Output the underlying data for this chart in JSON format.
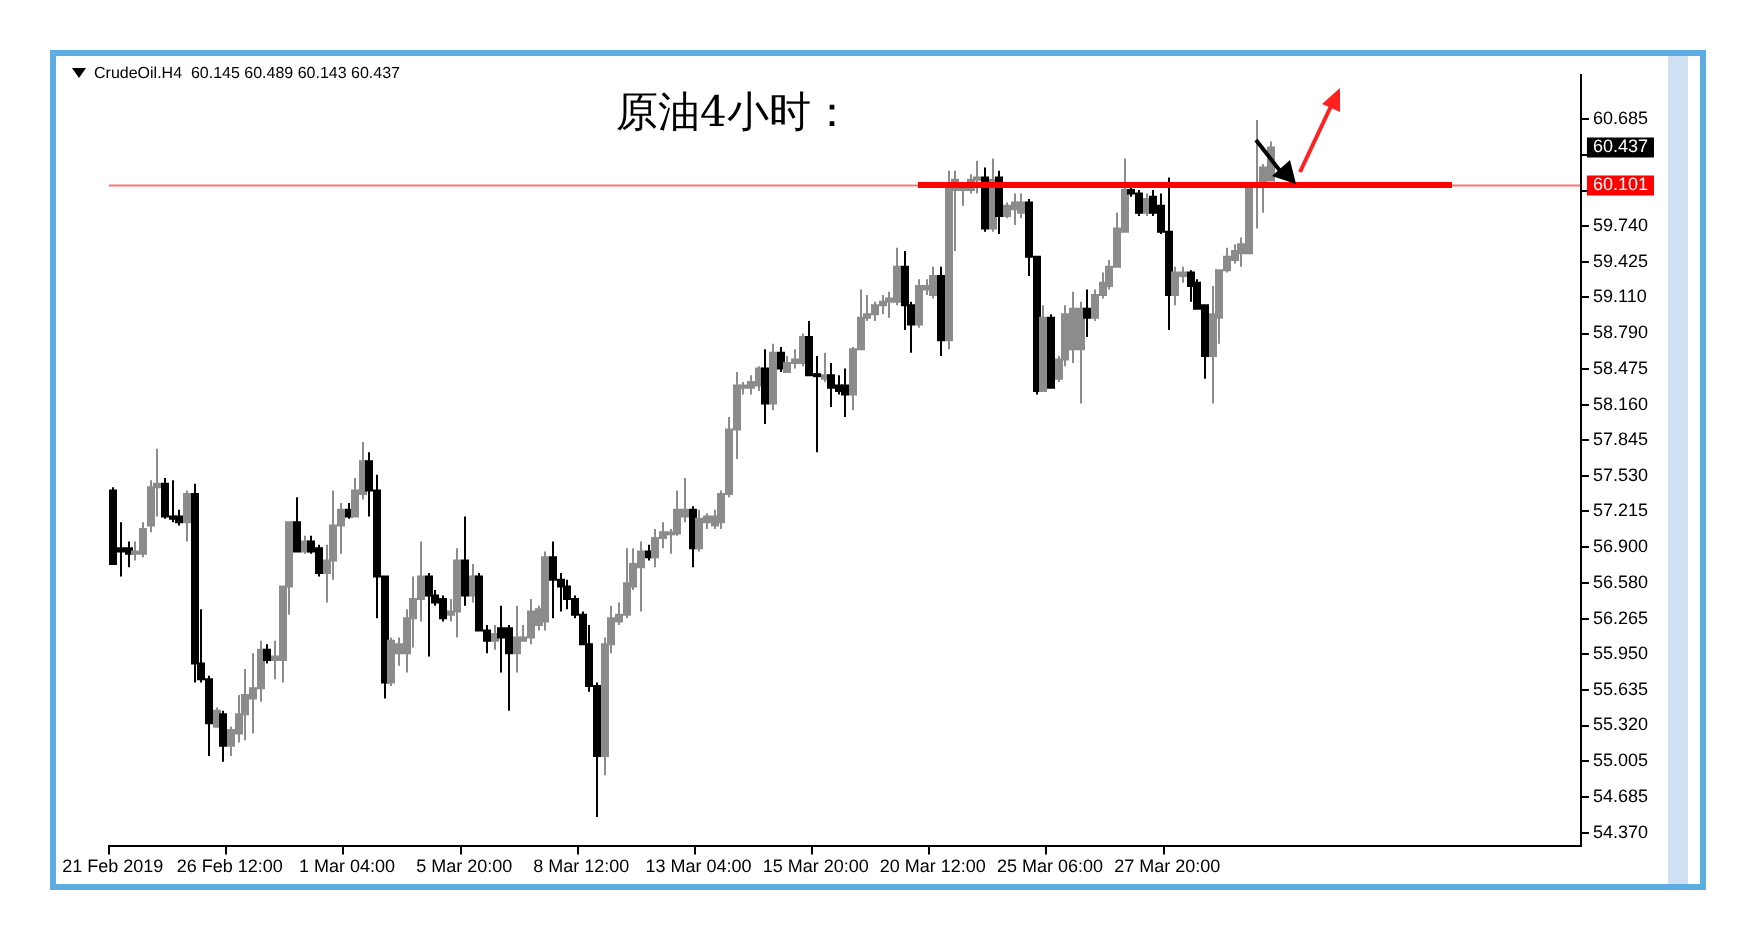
{
  "chart_data": {
    "type": "candlestick",
    "title": "原油4小时：",
    "colors": [
      "#000000",
      "#000000",
      "#000000",
      "#8c8c8c",
      "#8c8c8c",
      "#8c8c8c",
      "#8c8c8c",
      "#000000",
      "#000000",
      "#000000",
      "#8c8c8c",
      "#000000",
      "#000000",
      "#000000",
      "#8c8c8c",
      "#000000",
      "#8c8c8c",
      "#8c8c8c",
      "#8c8c8c",
      "#8c8c8c",
      "#8c8c8c",
      "#000000",
      "#8c8c8c",
      "#8c8c8c",
      "#8c8c8c",
      "#000000",
      "#8c8c8c",
      "#000000",
      "#000000",
      "#8c8c8c",
      "#8c8c8c",
      "#8c8c8c",
      "#000000",
      "#8c8c8c",
      "#8c8c8c",
      "#000000",
      "#000000",
      "#000000",
      "#8c8c8c",
      "#8c8c8c",
      "#8c8c8c",
      "#8c8c8c",
      "#8c8c8c",
      "#000000",
      "#000000",
      "#000000",
      "#8c8c8c",
      "#8c8c8c",
      "#000000",
      "#8c8c8c",
      "#000000",
      "#000000",
      "#8c8c8c",
      "#000000",
      "#000000",
      "#8c8c8c",
      "#8c8c8c",
      "#8c8c8c",
      "#8c8c8c",
      "#8c8c8c",
      "#000000",
      "#000000",
      "#000000",
      "#000000",
      "#000000",
      "#000000",
      "#000000",
      "#8c8c8c",
      "#8c8c8c",
      "#8c8c8c",
      "#8c8c8c",
      "#8c8c8c",
      "#8c8c8c",
      "#000000",
      "#8c8c8c",
      "#8c8c8c",
      "#8c8c8c",
      "#8c8c8c",
      "#8c8c8c",
      "#000000",
      "#8c8c8c",
      "#8c8c8c",
      "#8c8c8c",
      "#8c8c8c",
      "#8c8c8c",
      "#8c8c8c",
      "#8c8c8c",
      "#8c8c8c",
      "#8c8c8c",
      "#000000",
      "#8c8c8c",
      "#000000",
      "#8c8c8c",
      "#8c8c8c",
      "#8c8c8c",
      "#000000",
      "#000000",
      "#8c8c8c",
      "#000000",
      "#000000",
      "#000000",
      "#8c8c8c",
      "#8c8c8c",
      "#8c8c8c",
      "#8c8c8c",
      "#8c8c8c",
      "#8c8c8c",
      "#8c8c8c",
      "#000000",
      "#000000",
      "#8c8c8c",
      "#8c8c8c",
      "#8c8c8c",
      "#000000",
      "#8c8c8c",
      "#8c8c8c",
      "#8c8c8c",
      "#8c8c8c",
      "#8c8c8c",
      "#000000",
      "#8c8c8c",
      "#000000",
      "#8c8c8c",
      "#8c8c8c",
      "#8c8c8c",
      "#000000",
      "#000000",
      "#8c8c8c",
      "#000000",
      "#8c8c8c",
      "#8c8c8c",
      "#8c8c8c",
      "#8c8c8c",
      "#000000",
      "#8c8c8c",
      "#8c8c8c",
      "#8c8c8c",
      "#8c8c8c",
      "#8c8c8c",
      "#000000",
      "#000000",
      "#8c8c8c",
      "#000000",
      "#000000",
      "#000000",
      "#8c8c8c",
      "#8c8c8c",
      "#000000",
      "#000000",
      "#000000",
      "#8c8c8c",
      "#8c8c8c",
      "#8c8c8c",
      "#8c8c8c",
      "#8c8c8c",
      "#8c8c8c",
      "#8c8c8c",
      "#8c8c8c",
      "#8c8c8c",
      null,
      null,
      null,
      null,
      null,
      null,
      null,
      null,
      null,
      null,
      null,
      null,
      null,
      null,
      null,
      null,
      null,
      null,
      null,
      null,
      null,
      null,
      null,
      null,
      null,
      null,
      null,
      null,
      null,
      null,
      null,
      null,
      null,
      null,
      null,
      null,
      null,
      null,
      null,
      null,
      null,
      null
    ],
    "categories": [
      "21 Feb 2019",
      null,
      null,
      null,
      null,
      null,
      null,
      null,
      null,
      null,
      null,
      null,
      null,
      null,
      null,
      null,
      "26 Feb 12:00",
      null,
      null,
      null,
      null,
      null,
      null,
      null,
      null,
      null,
      null,
      null,
      null,
      null,
      null,
      null,
      "1 Mar 04:00",
      null,
      null,
      null,
      null,
      null,
      null,
      null,
      null,
      null,
      null,
      null,
      null,
      null,
      null,
      null,
      "5 Mar 20:00",
      null,
      null,
      null,
      null,
      null,
      null,
      null,
      null,
      null,
      null,
      null,
      null,
      null,
      null,
      null,
      "8 Mar 12:00",
      null,
      null,
      null,
      null,
      null,
      null,
      null,
      null,
      null,
      null,
      null,
      null,
      null,
      null,
      null,
      "13 Mar 04:00",
      null,
      null,
      null,
      null,
      null,
      null,
      null,
      null,
      null,
      null,
      null,
      null,
      null,
      null,
      null,
      "15 Mar 20:00",
      null,
      null,
      null,
      null,
      null,
      null,
      null,
      null,
      null,
      null,
      null,
      null,
      null,
      null,
      null,
      "20 Mar 12:00",
      null,
      null,
      null,
      null,
      null,
      null,
      null,
      null,
      null,
      null,
      null,
      null,
      null,
      null,
      null,
      "25 Mar 06:00",
      null,
      null,
      null,
      null,
      null,
      null,
      null,
      null,
      null,
      null,
      null,
      null,
      null,
      null,
      null,
      "27 Mar 20:00",
      null,
      null,
      null,
      null,
      null,
      null,
      null,
      null,
      null,
      null,
      null,
      null,
      null,
      null,
      null,
      null,
      null,
      null,
      null,
      null,
      null,
      null,
      null,
      null,
      null,
      null,
      null,
      null,
      null,
      null,
      null,
      null,
      null,
      null,
      null,
      null,
      null,
      null,
      null,
      null,
      null,
      null,
      null,
      null,
      null,
      null,
      null,
      null,
      null,
      null,
      null,
      null,
      null,
      null,
      null,
      null
    ],
    "ohlc": [
      [
        57.4,
        57.43,
        56.75,
        56.75
      ],
      [
        56.89,
        57.12,
        56.64,
        56.86
      ],
      [
        56.89,
        56.95,
        56.72,
        56.84
      ],
      [
        56.84,
        56.95,
        56.78,
        56.86
      ],
      [
        56.84,
        57.12,
        56.81,
        57.06
      ],
      [
        57.09,
        57.49,
        57.03,
        57.43
      ],
      [
        57.43,
        57.77,
        57.17,
        57.46
      ],
      [
        57.46,
        57.51,
        57.15,
        57.17
      ],
      [
        57.17,
        57.49,
        57.12,
        57.15
      ],
      [
        57.17,
        57.23,
        57.09,
        57.12
      ],
      [
        57.12,
        57.4,
        56.95,
        57.37
      ],
      [
        57.37,
        57.46,
        55.7,
        55.87
      ],
      [
        55.87,
        56.35,
        55.7,
        55.73
      ],
      [
        55.73,
        55.76,
        55.05,
        55.34
      ],
      [
        55.31,
        55.48,
        55.31,
        55.45
      ],
      [
        55.42,
        55.45,
        55.0,
        55.14
      ],
      [
        55.14,
        55.31,
        55.05,
        55.28
      ],
      [
        55.25,
        55.59,
        55.17,
        55.42
      ],
      [
        55.42,
        55.82,
        55.19,
        55.59
      ],
      [
        55.56,
        55.96,
        55.25,
        55.65
      ],
      [
        55.65,
        56.07,
        55.53,
        55.99
      ],
      [
        55.99,
        56.04,
        55.87,
        55.9
      ],
      [
        55.9,
        56.07,
        55.73,
        55.93
      ],
      [
        55.9,
        56.55,
        55.7,
        56.55
      ],
      [
        56.55,
        57.12,
        56.3,
        57.12
      ],
      [
        57.12,
        57.34,
        56.86,
        56.86
      ],
      [
        56.86,
        57.0,
        56.84,
        56.95
      ],
      [
        56.95,
        57.0,
        56.84,
        56.86
      ],
      [
        56.89,
        56.92,
        56.64,
        56.67
      ],
      [
        56.67,
        56.92,
        56.41,
        56.78
      ],
      [
        56.78,
        57.4,
        56.61,
        57.09
      ],
      [
        57.09,
        57.29,
        56.84,
        57.23
      ],
      [
        57.23,
        57.29,
        57.15,
        57.17
      ],
      [
        57.17,
        57.51,
        57.17,
        57.4
      ],
      [
        57.37,
        57.83,
        57.32,
        57.66
      ],
      [
        57.66,
        57.74,
        57.17,
        57.4
      ],
      [
        57.4,
        57.54,
        56.27,
        56.64
      ],
      [
        56.64,
        56.64,
        55.56,
        55.7
      ],
      [
        55.7,
        56.1,
        55.67,
        56.07
      ],
      [
        55.96,
        56.1,
        55.85,
        56.04
      ],
      [
        55.96,
        56.35,
        55.79,
        56.27
      ],
      [
        56.27,
        56.64,
        56.01,
        56.44
      ],
      [
        56.44,
        56.95,
        56.24,
        56.64
      ],
      [
        56.64,
        56.67,
        55.93,
        56.47
      ],
      [
        56.47,
        56.52,
        56.38,
        56.41
      ],
      [
        56.44,
        56.47,
        56.24,
        56.27
      ],
      [
        56.3,
        56.44,
        56.24,
        56.33
      ],
      [
        56.33,
        56.89,
        56.1,
        56.78
      ],
      [
        56.78,
        57.17,
        56.38,
        56.47
      ],
      [
        56.47,
        56.75,
        56.41,
        56.64
      ],
      [
        56.64,
        56.67,
        56.16,
        56.16
      ],
      [
        56.16,
        56.21,
        55.96,
        56.07
      ],
      [
        56.07,
        56.21,
        55.99,
        56.13
      ],
      [
        56.18,
        56.38,
        55.79,
        56.1
      ],
      [
        56.18,
        56.21,
        55.45,
        55.96
      ],
      [
        55.96,
        56.38,
        55.79,
        56.1
      ],
      [
        56.07,
        56.21,
        56.07,
        56.1
      ],
      [
        56.1,
        56.44,
        56.04,
        56.33
      ],
      [
        56.21,
        56.38,
        56.16,
        56.35
      ],
      [
        56.24,
        56.86,
        56.16,
        56.81
      ],
      [
        56.81,
        56.95,
        56.27,
        56.61
      ],
      [
        56.61,
        56.67,
        56.33,
        56.55
      ],
      [
        56.55,
        56.61,
        56.35,
        56.44
      ],
      [
        56.44,
        56.47,
        56.27,
        56.3
      ],
      [
        56.3,
        56.33,
        56.04,
        56.04
      ],
      [
        56.04,
        56.21,
        55.62,
        55.67
      ],
      [
        55.67,
        55.7,
        54.51,
        55.05
      ],
      [
        55.05,
        56.1,
        54.88,
        56.04
      ],
      [
        56.04,
        56.38,
        55.96,
        56.27
      ],
      [
        56.24,
        56.41,
        56.21,
        56.3
      ],
      [
        56.3,
        56.89,
        56.27,
        56.58
      ],
      [
        56.55,
        56.89,
        56.52,
        56.75
      ],
      [
        56.72,
        56.95,
        56.33,
        56.86
      ],
      [
        56.86,
        56.92,
        56.78,
        56.81
      ],
      [
        56.81,
        57.06,
        56.72,
        56.98
      ],
      [
        56.98,
        57.12,
        56.89,
        57.03
      ],
      [
        57.02,
        57.06,
        56.84,
        57.03
      ],
      [
        57.02,
        57.4,
        57.0,
        57.23
      ],
      [
        57.17,
        57.51,
        57.12,
        57.23
      ],
      [
        57.23,
        57.26,
        56.72,
        56.89
      ],
      [
        56.89,
        57.23,
        56.86,
        57.15
      ],
      [
        57.12,
        57.2,
        57.06,
        57.17
      ],
      [
        57.09,
        57.23,
        57.06,
        57.17
      ],
      [
        57.12,
        57.4,
        57.06,
        57.37
      ],
      [
        57.37,
        58.05,
        57.34,
        57.94
      ],
      [
        57.94,
        58.45,
        57.68,
        58.33
      ],
      [
        58.31,
        58.36,
        58.25,
        58.33
      ],
      [
        58.31,
        58.42,
        58.25,
        58.36
      ],
      [
        58.33,
        58.5,
        58.28,
        58.48
      ],
      [
        58.48,
        58.65,
        57.99,
        58.17
      ],
      [
        58.17,
        58.7,
        58.11,
        58.62
      ],
      [
        58.62,
        58.67,
        58.45,
        58.48
      ],
      [
        58.45,
        58.59,
        58.45,
        58.53
      ],
      [
        58.53,
        58.65,
        58.48,
        58.56
      ],
      [
        58.53,
        58.79,
        58.5,
        58.76
      ],
      [
        58.76,
        58.9,
        58.42,
        58.42
      ],
      [
        58.43,
        58.59,
        57.74,
        58.42
      ],
      [
        58.39,
        58.62,
        58.36,
        58.42
      ],
      [
        58.42,
        58.53,
        58.14,
        58.31
      ],
      [
        58.33,
        58.42,
        58.25,
        58.28
      ],
      [
        58.33,
        58.48,
        58.05,
        58.25
      ],
      [
        58.25,
        58.67,
        58.11,
        58.65
      ],
      [
        58.65,
        59.18,
        58.65,
        58.93
      ],
      [
        58.93,
        59.13,
        58.9,
        58.96
      ],
      [
        58.96,
        59.07,
        58.9,
        59.04
      ],
      [
        59.04,
        59.13,
        58.96,
        59.07
      ],
      [
        59.07,
        59.16,
        58.93,
        59.1
      ],
      [
        59.07,
        59.55,
        59.04,
        59.38
      ],
      [
        59.38,
        59.52,
        58.82,
        59.04
      ],
      [
        59.04,
        59.07,
        58.62,
        58.87
      ],
      [
        58.87,
        59.27,
        58.84,
        59.21
      ],
      [
        59.18,
        59.27,
        59.13,
        59.21
      ],
      [
        59.13,
        59.38,
        59.1,
        59.3
      ],
      [
        59.3,
        59.38,
        58.59,
        58.73
      ],
      [
        58.73,
        60.23,
        58.65,
        60.12
      ],
      [
        60.06,
        60.23,
        59.52,
        60.15
      ],
      [
        60.06,
        60.12,
        59.92,
        60.09
      ],
      [
        60.06,
        60.2,
        60.03,
        60.15
      ],
      [
        60.15,
        60.32,
        60.03,
        60.17
      ],
      [
        60.17,
        60.26,
        59.69,
        59.72
      ],
      [
        59.72,
        60.34,
        59.69,
        60.15
      ],
      [
        60.17,
        60.23,
        59.67,
        59.83
      ],
      [
        59.83,
        59.95,
        59.81,
        59.92
      ],
      [
        59.89,
        60.03,
        59.75,
        59.95
      ],
      [
        59.86,
        60.03,
        59.81,
        59.95
      ],
      [
        59.95,
        59.98,
        59.3,
        59.47
      ],
      [
        59.47,
        59.47,
        58.25,
        58.28
      ],
      [
        58.28,
        59.04,
        58.28,
        58.93
      ],
      [
        58.93,
        58.96,
        58.31,
        58.31
      ],
      [
        58.39,
        58.59,
        58.36,
        58.56
      ],
      [
        58.56,
        59.04,
        58.5,
        58.96
      ],
      [
        58.65,
        59.16,
        58.53,
        59.01
      ],
      [
        58.65,
        59.07,
        58.17,
        59.01
      ],
      [
        59.01,
        59.18,
        58.76,
        58.93
      ],
      [
        58.93,
        59.18,
        58.9,
        59.13
      ],
      [
        59.13,
        59.33,
        59.1,
        59.24
      ],
      [
        59.21,
        59.44,
        59.18,
        59.38
      ],
      [
        59.38,
        59.86,
        59.38,
        59.72
      ],
      [
        59.69,
        60.34,
        59.69,
        60.06
      ],
      [
        60.06,
        60.12,
        60.0,
        60.03
      ],
      [
        60.03,
        60.06,
        59.83,
        59.86
      ],
      [
        59.86,
        60.03,
        59.83,
        59.98
      ],
      [
        60.0,
        60.06,
        59.83,
        59.86
      ],
      [
        59.92,
        60.03,
        59.67,
        59.69
      ],
      [
        59.69,
        60.17,
        58.82,
        59.13
      ],
      [
        59.13,
        59.38,
        59.04,
        59.33
      ],
      [
        59.3,
        59.38,
        59.24,
        59.33
      ],
      [
        59.33,
        59.35,
        59.07,
        59.21
      ],
      [
        59.24,
        59.27,
        59.01,
        59.01
      ],
      [
        59.04,
        59.04,
        58.39,
        58.59
      ],
      [
        58.59,
        59.21,
        58.17,
        58.96
      ],
      [
        58.93,
        59.35,
        58.7,
        59.35
      ],
      [
        59.35,
        59.55,
        59.33,
        59.47
      ],
      [
        59.44,
        59.58,
        59.41,
        59.52
      ],
      [
        59.5,
        59.64,
        59.38,
        59.58
      ],
      [
        59.5,
        60.12,
        59.5,
        60.09
      ],
      [
        60.09,
        60.68,
        59.72,
        60.12
      ],
      [
        60.12,
        60.29,
        59.86,
        60.26
      ],
      [
        60.145,
        60.489,
        60.143,
        60.437
      ],
      null,
      null,
      null,
      null,
      null,
      null,
      null,
      null,
      null,
      null,
      null,
      null,
      null,
      null,
      null,
      null,
      null,
      null,
      null,
      null,
      null,
      null,
      null,
      null,
      null,
      null,
      null,
      null,
      null,
      null,
      null,
      null,
      null,
      null,
      null,
      null,
      null,
      null,
      null,
      null,
      null,
      null
    ],
    "ylim": [
      54.25,
      61.08
    ],
    "yticks": [
      {
        "value": 54.37,
        "label": "54.370"
      },
      54.685,
      55.005,
      {
        "value": 55.32,
        "label": "55.320"
      },
      55.635,
      {
        "value": 55.95,
        "label": "55.950"
      },
      56.265,
      {
        "value": 56.58,
        "label": "56.580"
      },
      {
        "value": 56.9,
        "label": "56.900"
      },
      57.215,
      {
        "value": 57.53,
        "label": "57.530"
      },
      57.845,
      {
        "value": 58.16,
        "label": "58.160"
      },
      58.475,
      {
        "value": 58.79,
        "label": "58.790"
      },
      {
        "value": 59.11,
        "label": "59.110"
      },
      59.425,
      {
        "value": 59.74,
        "label": "59.740"
      },
      {
        "value": 60.055,
        "label": null
      },
      {
        "value": 60.37,
        "label": null
      },
      60.685
    ],
    "grid": false,
    "legend": false,
    "ref_lines": [
      {
        "axis": "y",
        "value": 60.101,
        "label": "60.101",
        "color": "#ff0000"
      }
    ],
    "annotations": [
      "CrudeOil.H4  60.145 60.489 60.143 60.437",
      "60.437"
    ]
  }
}
